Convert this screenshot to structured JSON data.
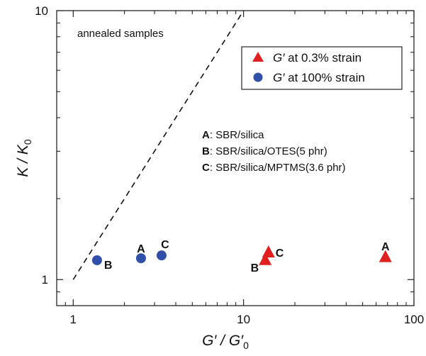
{
  "chart_data": {
    "type": "scatter",
    "x_scale": "log",
    "y_scale": "log",
    "xlim": [
      0.8,
      100
    ],
    "ylim": [
      0.8,
      10
    ],
    "xlabel": {
      "main": "G′ / G′",
      "sub": "0"
    },
    "ylabel": {
      "main": "K / K",
      "sub": "0"
    },
    "x_tick_labels": [
      {
        "value": 1,
        "label": "1"
      },
      {
        "value": 10,
        "label": "10"
      },
      {
        "value": 100,
        "label": "100"
      }
    ],
    "y_tick_labels": [
      {
        "value": 1,
        "label": "1"
      },
      {
        "value": 10,
        "label": "10"
      }
    ],
    "annotation": "annealed samples",
    "reference_line": {
      "style": "dashed",
      "points": [
        [
          1,
          1
        ],
        [
          10,
          10
        ]
      ]
    },
    "legend": {
      "placement": "top-right",
      "entries": [
        {
          "marker": "triangle",
          "symbol": "G′",
          "text": " at 0.3% strain"
        },
        {
          "marker": "circle",
          "symbol": "G′",
          "text": " at 100% strain"
        }
      ]
    },
    "sample_key": [
      {
        "letter": "A",
        "text": ":  SBR/silica"
      },
      {
        "letter": "B",
        "text": ":  SBR/silica/OTES(5 phr)"
      },
      {
        "letter": "C",
        "text": ":  SBR/silica/MPTMS(3.6 phr)"
      }
    ],
    "series": [
      {
        "marker": "triangle",
        "color": "#e02020",
        "points": [
          {
            "label": "A",
            "x": 68,
            "y": 1.21
          },
          {
            "label": "B",
            "x": 13.4,
            "y": 1.18
          },
          {
            "label": "C",
            "x": 14.0,
            "y": 1.26
          }
        ]
      },
      {
        "marker": "circle",
        "color": "#2f4fa8",
        "points": [
          {
            "label": "A",
            "x": 2.5,
            "y": 1.2
          },
          {
            "label": "B",
            "x": 1.38,
            "y": 1.18
          },
          {
            "label": "C",
            "x": 3.3,
            "y": 1.23
          }
        ]
      }
    ]
  }
}
